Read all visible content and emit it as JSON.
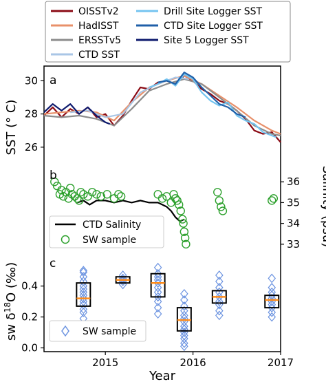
{
  "chart_data": [
    {
      "panel": "a",
      "type": "line",
      "ylabel": "SST (° C)",
      "ylim": [
        25.0,
        30.8
      ],
      "yticks": [
        26,
        28,
        30
      ],
      "xlim": [
        2014.3,
        2017.0
      ],
      "series": [
        {
          "name": "OISSTv2",
          "color": "#8b0a14",
          "x": [
            2014.3,
            2014.4,
            2014.5,
            2014.6,
            2014.7,
            2014.8,
            2014.9,
            2015.0,
            2015.1,
            2015.2,
            2015.3,
            2015.4,
            2015.5,
            2015.6,
            2015.7,
            2015.8,
            2015.9,
            2016.0,
            2016.1,
            2016.2,
            2016.3,
            2016.4,
            2016.5,
            2016.6,
            2016.7,
            2016.8,
            2016.9,
            2017.0
          ],
          "y": [
            27.9,
            28.4,
            27.8,
            28.3,
            28.0,
            28.4,
            27.8,
            28.0,
            27.3,
            27.9,
            28.8,
            29.6,
            29.5,
            29.9,
            30.0,
            29.8,
            30.3,
            30.0,
            29.5,
            29.2,
            28.8,
            28.6,
            28.2,
            27.7,
            27.0,
            26.8,
            26.9,
            26.3
          ]
        },
        {
          "name": "HadISST",
          "color": "#e8906a",
          "x": [
            2014.3,
            2014.5,
            2014.7,
            2014.9,
            2015.1,
            2015.3,
            2015.5,
            2015.7,
            2015.9,
            2016.1,
            2016.3,
            2016.5,
            2016.7,
            2016.9,
            2017.0
          ],
          "y": [
            28.0,
            28.1,
            28.2,
            28.1,
            27.6,
            28.7,
            29.6,
            30.0,
            30.3,
            29.8,
            29.1,
            28.4,
            27.6,
            27.0,
            26.8
          ]
        },
        {
          "name": "ERSSTv5",
          "color": "#8c8c8c",
          "x": [
            2014.3,
            2014.5,
            2014.7,
            2014.9,
            2015.1,
            2015.3,
            2015.5,
            2015.7,
            2015.9,
            2016.1,
            2016.3,
            2016.5,
            2016.7,
            2016.9,
            2017.0
          ],
          "y": [
            27.9,
            27.8,
            27.9,
            27.7,
            27.3,
            28.3,
            29.4,
            29.8,
            30.1,
            29.8,
            29.0,
            28.2,
            27.3,
            26.8,
            26.7
          ]
        },
        {
          "name": "CTD SST",
          "color": "#a9c6e6",
          "x": [
            2014.6,
            2014.8,
            2015.0,
            2015.2,
            2015.4,
            2015.6,
            2015.8,
            2015.95
          ],
          "y": [
            28.1,
            28.2,
            27.8,
            28.0,
            29.3,
            29.8,
            30.2,
            30.1
          ]
        },
        {
          "name": "Drill Site Logger SST",
          "color": "#74c4f0",
          "x": [
            2015.5,
            2015.6,
            2015.7,
            2015.8,
            2015.9,
            2016.0,
            2016.1,
            2016.2,
            2016.3,
            2016.4,
            2016.5,
            2016.6,
            2016.7,
            2016.8,
            2016.9,
            2016.95
          ],
          "y": [
            29.6,
            29.8,
            30.1,
            29.7,
            30.4,
            30.1,
            29.3,
            28.8,
            28.5,
            28.7,
            27.9,
            27.6,
            27.4,
            26.9,
            26.7,
            26.6
          ]
        },
        {
          "name": "CTD Site Logger SST",
          "color": "#1f5fa8",
          "x": [
            2015.6,
            2015.7,
            2015.8,
            2015.9,
            2016.0,
            2016.1,
            2016.2,
            2016.3,
            2016.4,
            2016.5,
            2016.6
          ],
          "y": [
            29.9,
            30.0,
            29.8,
            30.5,
            30.2,
            29.6,
            29.1,
            28.6,
            28.4,
            28.0,
            27.8
          ]
        },
        {
          "name": "Site 5 Logger SST",
          "color": "#0d1a6e",
          "x": [
            2014.3,
            2014.4,
            2014.5,
            2014.6,
            2014.7,
            2014.8,
            2014.9,
            2015.0,
            2015.05
          ],
          "y": [
            28.1,
            28.6,
            28.2,
            28.6,
            28.0,
            28.4,
            27.9,
            27.5,
            27.4
          ]
        }
      ]
    },
    {
      "panel": "b",
      "type": "scatter",
      "ylabel": "Salinity (psu)",
      "ylim": [
        32.5,
        36.8
      ],
      "yticks": [
        33,
        34,
        35,
        36
      ],
      "xlim": [
        2014.3,
        2017.0
      ],
      "series": [
        {
          "name": "CTD Salinity",
          "color": "#000000",
          "style": "line",
          "x": [
            2014.68,
            2014.75,
            2014.82,
            2014.9,
            2015.0,
            2015.1,
            2015.2,
            2015.3,
            2015.4,
            2015.5,
            2015.6,
            2015.65,
            2015.7,
            2015.75,
            2015.8,
            2015.85,
            2015.9
          ],
          "y": [
            35.0,
            35.1,
            34.9,
            35.1,
            35.1,
            35.0,
            35.1,
            35.0,
            35.1,
            35.0,
            35.0,
            34.9,
            34.8,
            34.6,
            34.3,
            34.1,
            34.2
          ]
        },
        {
          "name": "SW sample",
          "color": "#2ca02c",
          "style": "marker",
          "x": [
            2014.42,
            2014.45,
            2014.48,
            2014.5,
            2014.52,
            2014.55,
            2014.58,
            2014.6,
            2014.62,
            2014.65,
            2014.68,
            2014.7,
            2014.72,
            2014.75,
            2014.8,
            2014.85,
            2014.9,
            2014.95,
            2015.02,
            2015.1,
            2015.15,
            2015.18,
            2015.6,
            2015.65,
            2015.7,
            2015.75,
            2015.78,
            2015.8,
            2015.82,
            2015.84,
            2015.86,
            2015.88,
            2015.89,
            2015.9,
            2015.91,
            2015.92,
            2016.28,
            2016.3,
            2016.32,
            2016.34,
            2016.9,
            2016.92
          ],
          "y": [
            36.0,
            35.8,
            35.4,
            35.6,
            35.3,
            35.5,
            35.2,
            35.7,
            35.4,
            35.3,
            35.2,
            35.1,
            35.5,
            35.4,
            35.3,
            35.5,
            35.4,
            35.3,
            35.4,
            35.2,
            35.4,
            35.3,
            35.4,
            35.2,
            35.3,
            35.0,
            35.4,
            35.2,
            35.1,
            34.9,
            34.6,
            34.2,
            34.0,
            33.6,
            33.3,
            33.0,
            35.5,
            35.1,
            34.8,
            34.6,
            35.1,
            35.2
          ]
        }
      ]
    },
    {
      "panel": "c",
      "type": "box",
      "ylabel": "sw δ18O (‰)",
      "ylim": [
        -0.02,
        0.55
      ],
      "yticks": [
        0.0,
        0.2,
        0.4
      ],
      "xlim": [
        2014.3,
        2017.0
      ],
      "series": [
        {
          "name": "SW sample",
          "color": "#6a92e0",
          "boxes": [
            {
              "x": 2014.75,
              "q1": 0.27,
              "median": 0.32,
              "q3": 0.42,
              "points": [
                0.19,
                0.23,
                0.25,
                0.28,
                0.3,
                0.32,
                0.34,
                0.36,
                0.38,
                0.4,
                0.43,
                0.46,
                0.49,
                0.5
              ]
            },
            {
              "x": 2015.2,
              "q1": 0.42,
              "median": 0.44,
              "q3": 0.46,
              "points": [
                0.41,
                0.43,
                0.44,
                0.45,
                0.47
              ]
            },
            {
              "x": 2015.6,
              "q1": 0.33,
              "median": 0.42,
              "q3": 0.48,
              "points": [
                0.22,
                0.26,
                0.3,
                0.33,
                0.36,
                0.39,
                0.42,
                0.44,
                0.46,
                0.48,
                0.52
              ]
            },
            {
              "x": 2015.9,
              "q1": 0.11,
              "median": 0.18,
              "q3": 0.26,
              "points": [
                0.01,
                0.03,
                0.06,
                0.08,
                0.1,
                0.12,
                0.14,
                0.17,
                0.19,
                0.21,
                0.24,
                0.27,
                0.31,
                0.35
              ]
            },
            {
              "x": 2016.3,
              "q1": 0.29,
              "median": 0.33,
              "q3": 0.37,
              "points": [
                0.21,
                0.24,
                0.28,
                0.3,
                0.33,
                0.36,
                0.39,
                0.43,
                0.47
              ]
            },
            {
              "x": 2016.9,
              "q1": 0.26,
              "median": 0.31,
              "q3": 0.34,
              "points": [
                0.2,
                0.23,
                0.26,
                0.28,
                0.3,
                0.32,
                0.34,
                0.36,
                0.39,
                0.45
              ]
            }
          ]
        }
      ]
    }
  ],
  "figure": {
    "xlabel": "Year",
    "xticks": [
      {
        "value": 2015.0,
        "label": "2015"
      },
      {
        "value": 2016.0,
        "label": "2016"
      },
      {
        "value": 2017.0,
        "label": "2017"
      }
    ],
    "panel_labels": {
      "a": "a",
      "b": "b",
      "c": "c"
    },
    "left_ylabel_a": "SST (° C)",
    "right_ylabel_b": "Salinity (psu)",
    "ylabel_c_prefix": "sw δ",
    "ylabel_c_sup": "18",
    "ylabel_c_suffix": "O (‰)",
    "legend_a": [
      "OISSTv2",
      "HadISST",
      "ERSSTv5",
      "CTD SST",
      "Drill Site Logger SST",
      "CTD Site Logger SST",
      "Site 5 Logger SST"
    ],
    "legend_b": [
      "CTD Salinity",
      "SW sample"
    ],
    "legend_c": [
      "SW sample"
    ],
    "median_color": "#ff8c1a"
  }
}
